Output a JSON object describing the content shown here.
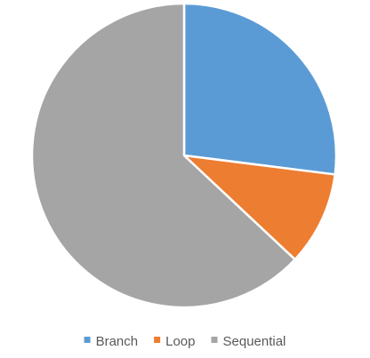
{
  "chart_data": {
    "type": "pie",
    "categories": [
      "Branch",
      "Loop",
      "Sequential"
    ],
    "values": [
      27,
      10,
      63
    ],
    "colors": [
      "#5B9BD5",
      "#ED7D31",
      "#A5A5A5"
    ],
    "start_angle_deg": 0,
    "direction": "clockwise",
    "legend": {
      "position": "bottom",
      "items": [
        "Branch",
        "Loop",
        "Sequential"
      ]
    }
  }
}
